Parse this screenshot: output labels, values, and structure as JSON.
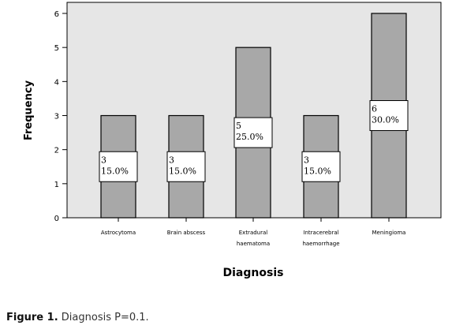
{
  "chart_data": {
    "type": "bar",
    "categories": [
      [
        "Astrocytoma"
      ],
      [
        "Brain abscess"
      ],
      [
        "Extradural",
        "haematoma"
      ],
      [
        "Intracerebral",
        "haemorrhage"
      ],
      [
        "Meningioma"
      ]
    ],
    "values": [
      3,
      3,
      5,
      3,
      6
    ],
    "labels": [
      [
        "3",
        "15.0%"
      ],
      [
        "3",
        "15.0%"
      ],
      [
        "5",
        "25.0%"
      ],
      [
        "3",
        "15.0%"
      ],
      [
        "6",
        "30.0%"
      ]
    ],
    "xlabel": "Diagnosis",
    "ylabel": "Frequency",
    "ylim": [
      0,
      6
    ],
    "yticks": [
      "0",
      "1",
      "2",
      "3",
      "4",
      "5",
      "6"
    ],
    "grid": false,
    "colors": {
      "bar": "#a8a8a8",
      "plot_bg": "#e6e6e6",
      "label_bg": "#ffffff"
    }
  },
  "caption": {
    "lead": "Figure 1.",
    "text": "Diagnosis P=0.1."
  }
}
